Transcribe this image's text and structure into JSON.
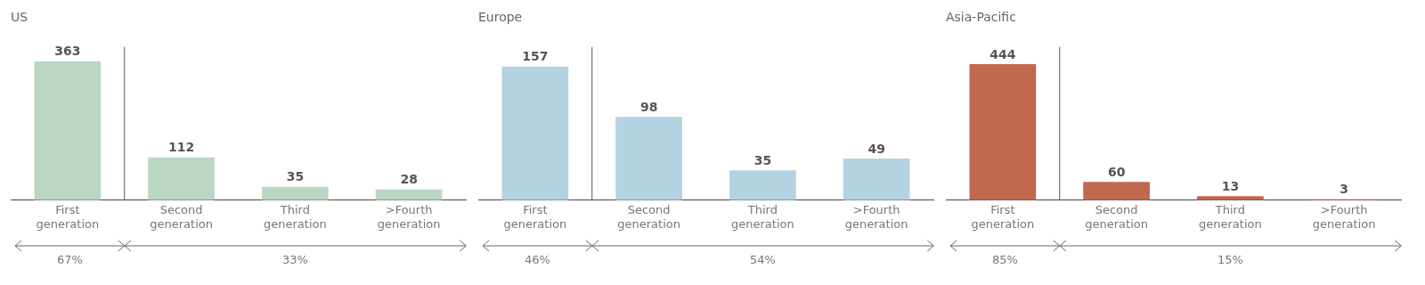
{
  "chart_data": [
    {
      "type": "bar",
      "title": "US",
      "categories": [
        "First generation",
        "Second generation",
        "Third generation",
        ">Fourth generation"
      ],
      "values": [
        363,
        112,
        35,
        28
      ],
      "color": "#bcd6c4",
      "data_labels": true,
      "annotations": [
        "67%",
        "33%"
      ]
    },
    {
      "type": "bar",
      "title": "Europe",
      "categories": [
        "First generation",
        "Second generation",
        "Third generation",
        ">Fourth generation"
      ],
      "values": [
        157,
        98,
        35,
        49
      ],
      "color": "#b3d3e3",
      "data_labels": true,
      "annotations": [
        "46%",
        "54%"
      ]
    },
    {
      "type": "bar",
      "title": "Asia-Pacific",
      "categories": [
        "First generation",
        "Second generation",
        "Third generation",
        ">Fourth generation"
      ],
      "values": [
        444,
        60,
        13,
        3
      ],
      "color": "#c0694f",
      "data_labels": true,
      "annotations": [
        "85%",
        "15%"
      ]
    }
  ]
}
